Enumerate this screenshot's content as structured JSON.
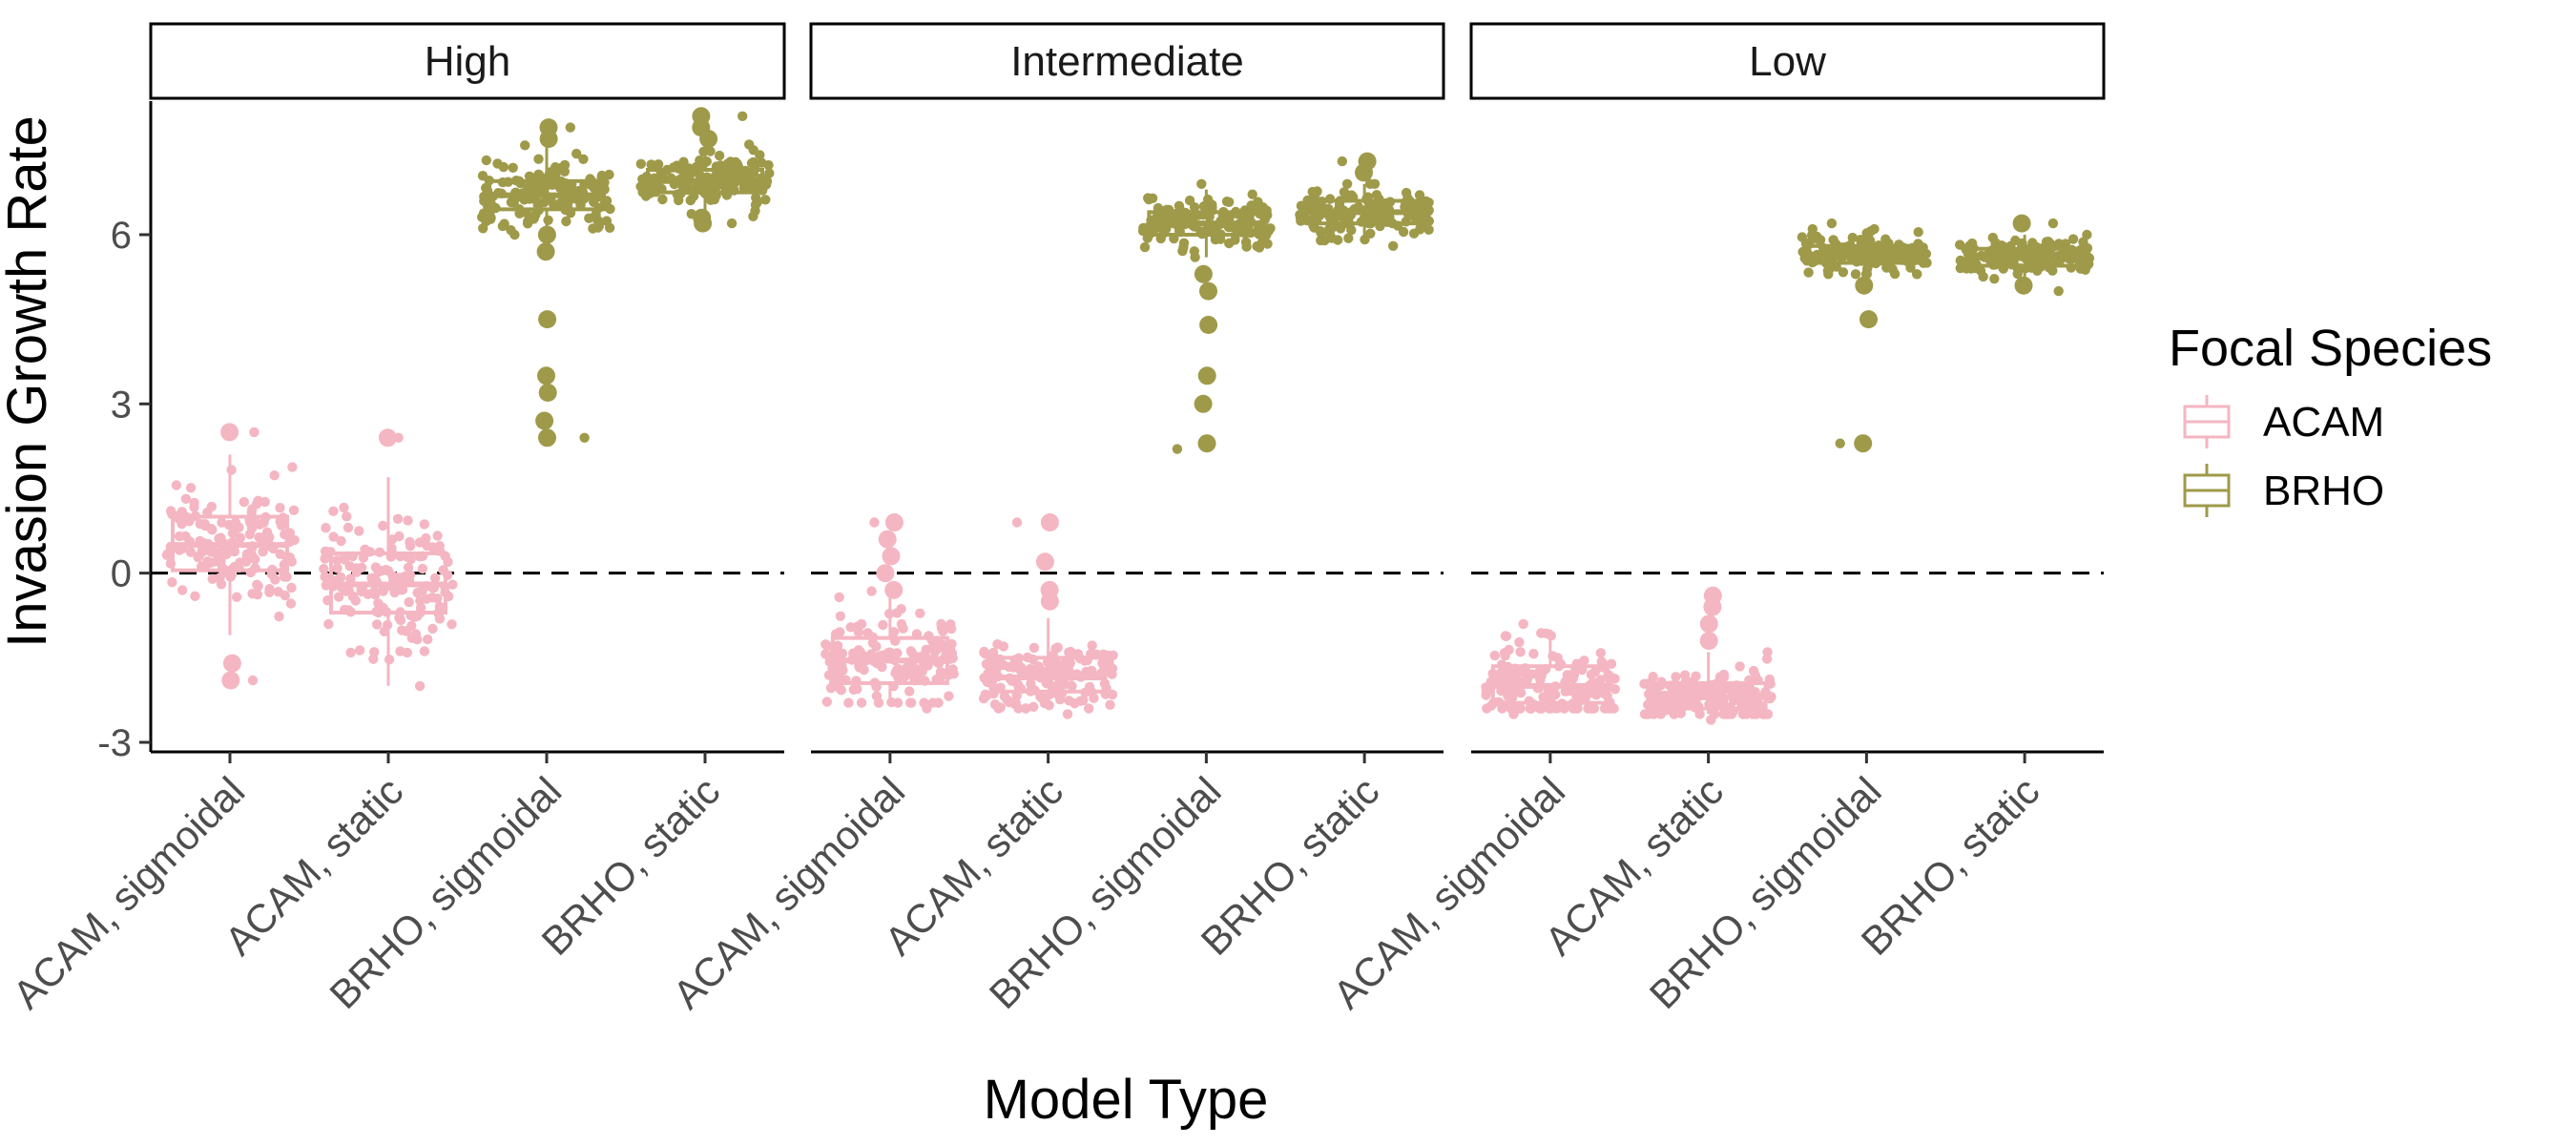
{
  "chart_data": {
    "type": "boxplot_jitter",
    "xlabel": "Model Type",
    "ylabel": "Invasion Growth Rate",
    "ylim": [
      -3,
      8.3
    ],
    "yticks": [
      -3,
      0,
      3,
      6
    ],
    "reference_line": {
      "y": 0,
      "style": "dashed"
    },
    "facets": [
      "High",
      "Intermediate",
      "Low"
    ],
    "categories": [
      "ACAM, sigmoidal",
      "ACAM, static",
      "BRHO, sigmoidal",
      "BRHO, static"
    ],
    "legend": {
      "title": "Focal Species",
      "placement": "right",
      "entries": [
        {
          "name": "ACAM",
          "color": "#F4B6C2"
        },
        {
          "name": "BRHO",
          "color": "#9E9A4A"
        }
      ]
    },
    "boxes": [
      {
        "facet": "High",
        "category": "ACAM, sigmoidal",
        "species": "ACAM",
        "min": -1.1,
        "q1": 0.05,
        "median": 0.5,
        "q3": 1.0,
        "max": 2.1,
        "range": [
          -1.9,
          2.5
        ],
        "outliers": [
          2.5,
          -1.6,
          -1.9
        ]
      },
      {
        "facet": "High",
        "category": "ACAM, static",
        "species": "ACAM",
        "min": -2.0,
        "q1": -0.7,
        "median": -0.2,
        "q3": 0.35,
        "max": 1.7,
        "range": [
          -2.0,
          2.4
        ],
        "outliers": [
          2.4
        ]
      },
      {
        "facet": "High",
        "category": "BRHO, sigmoidal",
        "species": "BRHO",
        "min": 6.0,
        "q1": 6.45,
        "median": 6.7,
        "q3": 6.95,
        "max": 7.6,
        "range": [
          2.4,
          7.9
        ],
        "outliers": [
          7.9,
          7.7,
          6.0,
          5.7,
          4.5,
          3.5,
          3.2,
          2.7,
          2.4
        ]
      },
      {
        "facet": "High",
        "category": "BRHO, static",
        "species": "BRHO",
        "min": 6.3,
        "q1": 6.75,
        "median": 6.95,
        "q3": 7.15,
        "max": 7.6,
        "range": [
          6.2,
          8.1
        ],
        "outliers": [
          8.1,
          7.9,
          7.7,
          6.3,
          6.2
        ]
      },
      {
        "facet": "Intermediate",
        "category": "ACAM, sigmoidal",
        "species": "ACAM",
        "min": -2.3,
        "q1": -1.95,
        "median": -1.55,
        "q3": -1.15,
        "max": -0.3,
        "range": [
          -2.4,
          0.9
        ],
        "outliers": [
          0.9,
          0.6,
          0.3,
          0.0,
          -0.3
        ]
      },
      {
        "facet": "Intermediate",
        "category": "ACAM, static",
        "species": "ACAM",
        "min": -2.4,
        "q1": -2.1,
        "median": -1.85,
        "q3": -1.5,
        "max": -0.8,
        "range": [
          -2.5,
          0.9
        ],
        "outliers": [
          0.9,
          0.2,
          -0.3,
          -0.5
        ]
      },
      {
        "facet": "Intermediate",
        "category": "BRHO, sigmoidal",
        "species": "BRHO",
        "min": 5.6,
        "q1": 6.0,
        "median": 6.2,
        "q3": 6.4,
        "max": 6.8,
        "range": [
          2.2,
          6.9
        ],
        "outliers": [
          5.3,
          5.0,
          4.4,
          3.5,
          3.0,
          2.3
        ]
      },
      {
        "facet": "Intermediate",
        "category": "BRHO, static",
        "species": "BRHO",
        "min": 5.9,
        "q1": 6.2,
        "median": 6.4,
        "q3": 6.6,
        "max": 6.9,
        "range": [
          5.8,
          7.3
        ],
        "outliers": [
          7.3,
          7.1
        ]
      },
      {
        "facet": "Low",
        "category": "ACAM, sigmoidal",
        "species": "ACAM",
        "min": -2.4,
        "q1": -2.3,
        "median": -2.0,
        "q3": -1.65,
        "max": -1.0,
        "range": [
          -2.5,
          -0.9
        ],
        "outliers": []
      },
      {
        "facet": "Low",
        "category": "ACAM, static",
        "species": "ACAM",
        "min": -2.5,
        "q1": -2.4,
        "median": -2.2,
        "q3": -1.95,
        "max": -1.4,
        "range": [
          -2.6,
          -0.4
        ],
        "outliers": [
          -0.4,
          -0.6,
          -0.9,
          -1.2
        ]
      },
      {
        "facet": "Low",
        "category": "BRHO, sigmoidal",
        "species": "BRHO",
        "min": 5.3,
        "q1": 5.5,
        "median": 5.65,
        "q3": 5.8,
        "max": 6.1,
        "range": [
          2.3,
          6.2
        ],
        "outliers": [
          5.1,
          4.5,
          2.3
        ]
      },
      {
        "facet": "Low",
        "category": "BRHO, static",
        "species": "BRHO",
        "min": 5.1,
        "q1": 5.45,
        "median": 5.6,
        "q3": 5.75,
        "max": 6.0,
        "range": [
          5.0,
          6.2
        ],
        "outliers": [
          6.2,
          5.1
        ]
      }
    ]
  }
}
